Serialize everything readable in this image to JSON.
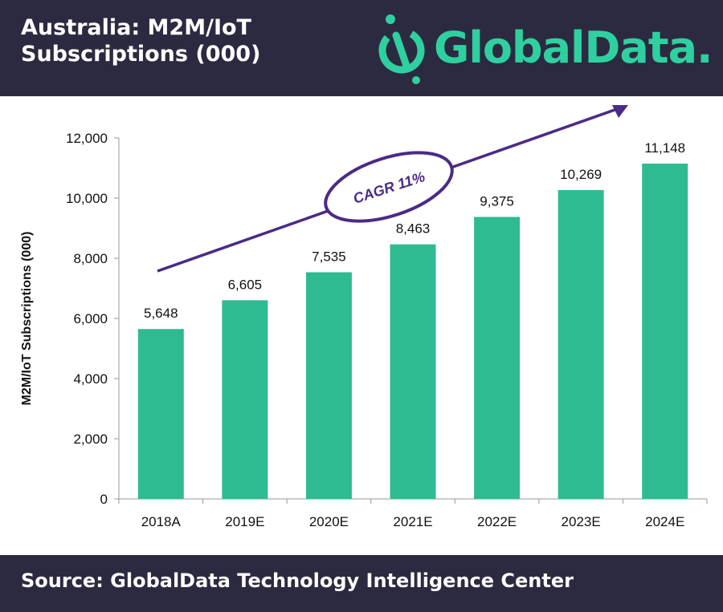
{
  "header": {
    "title": "Australia: M2M/IoT Subscriptions (000)",
    "logo_text": "GlobalData.",
    "background": "#2c2a40"
  },
  "footer": {
    "source": "Source: GlobalData Technology Intelligence Center"
  },
  "colors": {
    "bar": "#2fbb91",
    "accent": "#4b2a87",
    "logo": "#2fd0a0"
  },
  "chart_data": {
    "type": "bar",
    "categories": [
      "2018A",
      "2019E",
      "2020E",
      "2021E",
      "2022E",
      "2023E",
      "2024E"
    ],
    "values": [
      5648,
      6605,
      7535,
      8463,
      9375,
      10269,
      11148
    ],
    "data_labels": [
      "5,648",
      "6,605",
      "7,535",
      "8,463",
      "9,375",
      "10,269",
      "11,148"
    ],
    "ylabel": "M2M/IoT Subscriptions (000)",
    "ylim": [
      0,
      12000
    ],
    "yticks": [
      "0",
      "2,000",
      "4,000",
      "6,000",
      "8,000",
      "10,000",
      "12,000"
    ],
    "ytick_values": [
      0,
      2000,
      4000,
      6000,
      8000,
      10000,
      12000
    ],
    "annotation": "CAGR 11%",
    "grid": false
  }
}
